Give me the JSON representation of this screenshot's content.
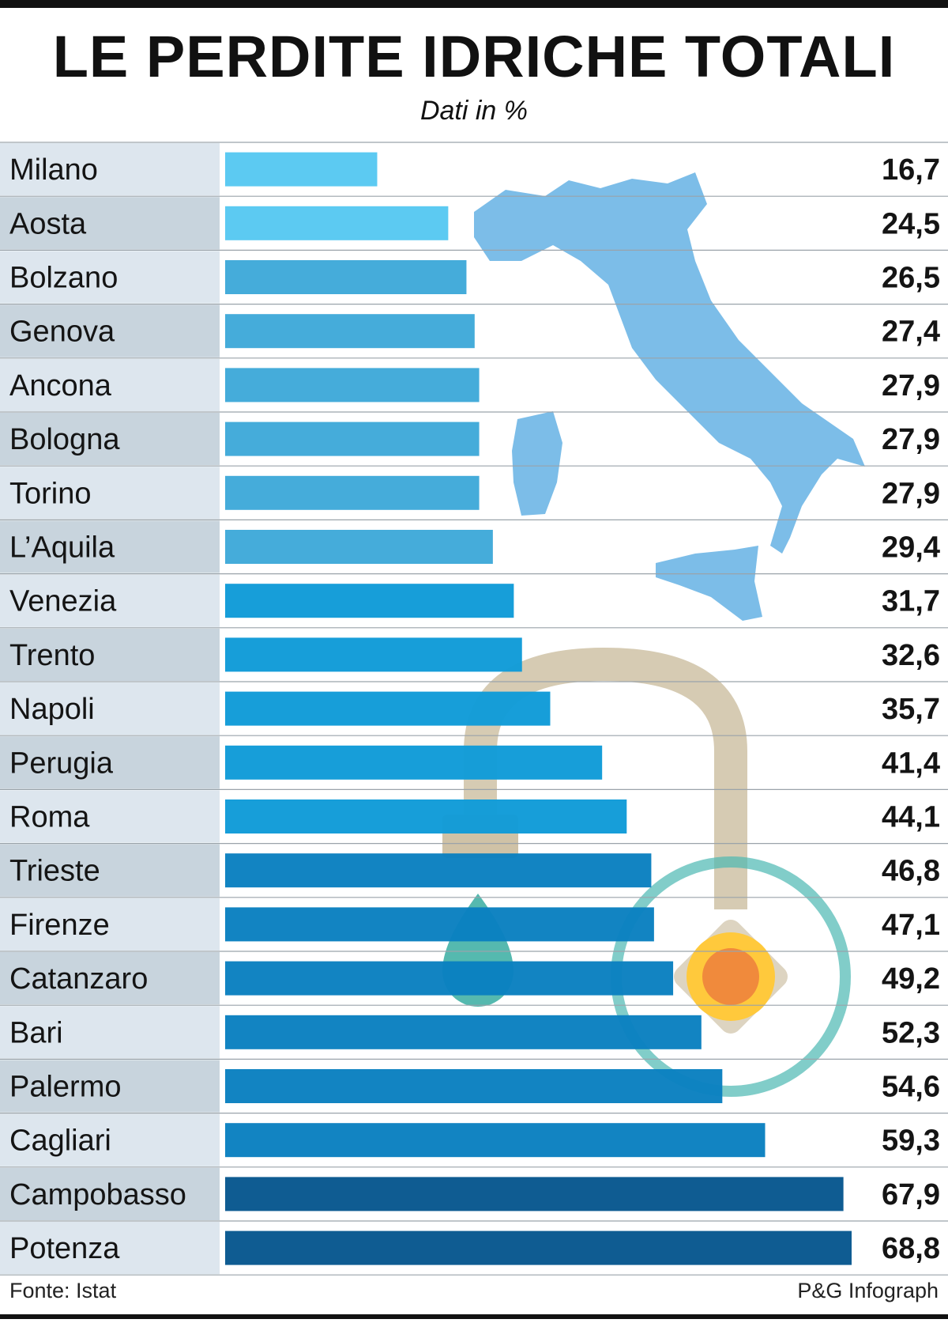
{
  "title": "LE PERDITE IDRICHE TOTALI",
  "subtitle": "Dati in %",
  "footer": {
    "source": "Fonte: Istat",
    "credit": "P&G Infograph"
  },
  "colors": {
    "label_light": "#dde6ee",
    "label_dark": "#c8d4dd",
    "map": "#7cbde8",
    "tap": "#cfc2a6",
    "drop": "#2aa79b",
    "handle_ring": "#4bb8b2",
    "handle_center": "#f08a3c",
    "handle_glow": "#ffc93c"
  },
  "chart_data": {
    "type": "bar",
    "orientation": "horizontal",
    "title": "LE PERDITE IDRICHE TOTALI",
    "subtitle": "Dati in %",
    "categories": [
      "Milano",
      "Aosta",
      "Bolzano",
      "Genova",
      "Ancona",
      "Bologna",
      "Torino",
      "L’Aquila",
      "Venezia",
      "Trento",
      "Napoli",
      "Perugia",
      "Roma",
      "Trieste",
      "Firenze",
      "Catanzaro",
      "Bari",
      "Palermo",
      "Cagliari",
      "Campobasso",
      "Potenza"
    ],
    "values": [
      16.7,
      24.5,
      26.5,
      27.4,
      27.9,
      27.9,
      27.9,
      29.4,
      31.7,
      32.6,
      35.7,
      41.4,
      44.1,
      46.8,
      47.1,
      49.2,
      52.3,
      54.6,
      59.3,
      67.9,
      68.8
    ],
    "value_labels": [
      "16,7",
      "24,5",
      "26,5",
      "27,4",
      "27,9",
      "27,9",
      "27,9",
      "29,4",
      "31,7",
      "32,6",
      "35,7",
      "41,4",
      "44,1",
      "46,8",
      "47,1",
      "49,2",
      "52,3",
      "54,6",
      "59,3",
      "67,9",
      "68,8"
    ],
    "bar_colors": [
      "#57c8f2",
      "#57c8f2",
      "#3fa9d9",
      "#3fa9d9",
      "#3fa9d9",
      "#3fa9d9",
      "#3fa9d9",
      "#3fa9d9",
      "#0f9bd8",
      "#0f9bd8",
      "#0f9bd8",
      "#0f9bd8",
      "#0f9bd8",
      "#0a80c0",
      "#0a80c0",
      "#0a80c0",
      "#0a80c0",
      "#0a80c0",
      "#0a80c0",
      "#07578e",
      "#07578e"
    ],
    "xlim": [
      0,
      70
    ],
    "grid": false,
    "legend": "none"
  }
}
